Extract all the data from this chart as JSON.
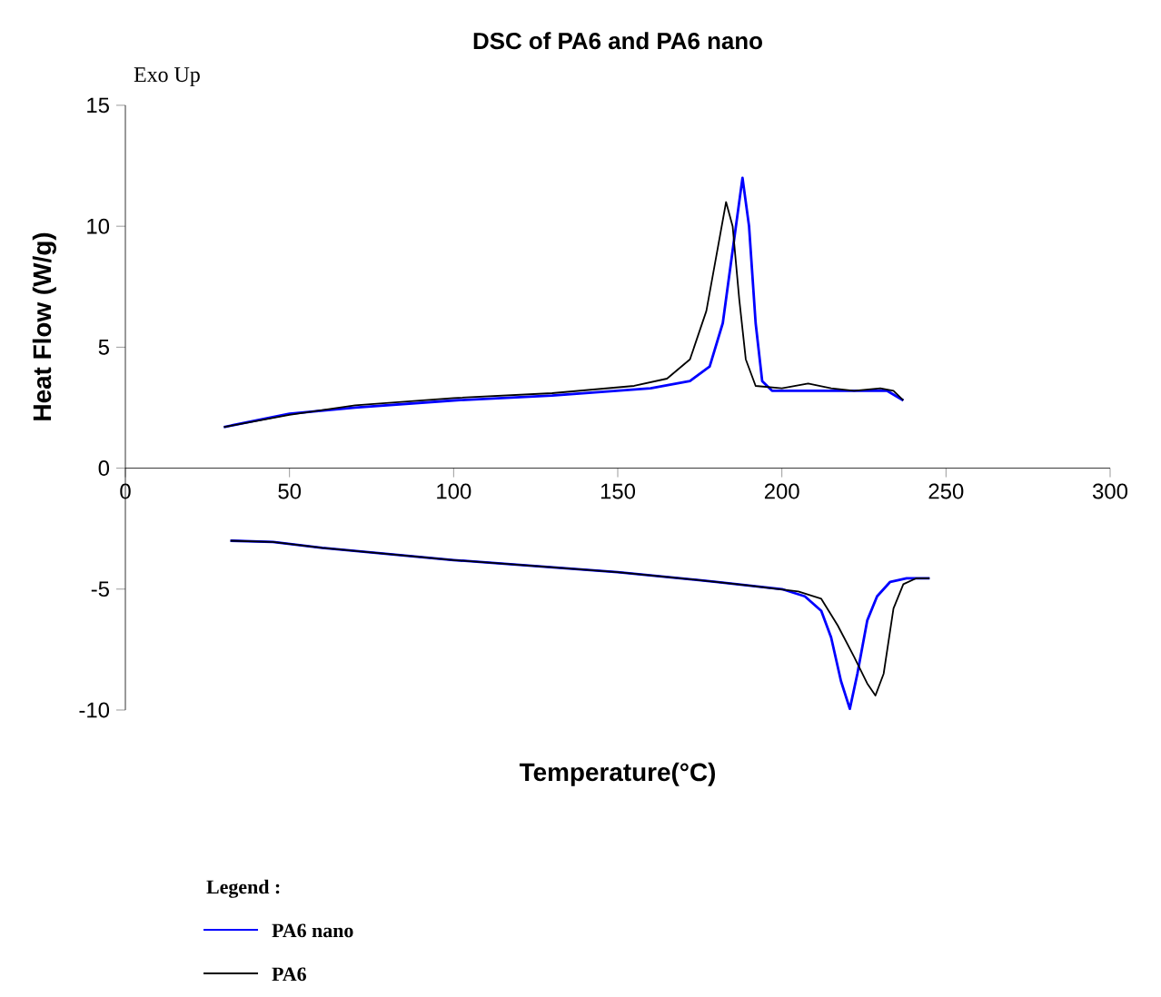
{
  "chart_data": {
    "type": "line",
    "title": "DSC of PA6 and PA6 nano",
    "xlabel": "Temperature(°C)",
    "ylabel": "Heat Flow (W/g)",
    "legend_title": "Legend :",
    "annotations": [
      "Exo Up"
    ],
    "xlim": [
      0,
      300
    ],
    "ylim": [
      -10,
      15
    ],
    "xticks": [
      0,
      50,
      100,
      150,
      200,
      250,
      300
    ],
    "yticks": [
      -10,
      -5,
      0,
      5,
      10,
      15
    ],
    "grid": false,
    "legend": "bottom",
    "marker": "none",
    "series": [
      {
        "name": "PA6 nano",
        "color": "#0000ff",
        "line_style": "solid",
        "x": [
          30,
          50,
          70,
          100,
          130,
          160,
          172,
          178,
          182,
          185,
          188,
          190,
          192,
          194,
          197,
          210,
          225,
          232,
          237,
          null,
          32,
          45,
          60,
          100,
          150,
          180,
          190,
          200,
          207,
          212,
          215,
          218,
          220.7,
          223,
          226,
          229,
          233,
          238,
          245
        ],
        "values": [
          1.7,
          2.25,
          2.5,
          2.8,
          3.0,
          3.3,
          3.6,
          4.2,
          6,
          9,
          12,
          10,
          6,
          3.6,
          3.2,
          3.2,
          3.2,
          3.2,
          2.8,
          null,
          -3.0,
          -3.05,
          -3.3,
          -3.8,
          -4.3,
          -4.7,
          -4.85,
          -5.0,
          -5.3,
          -5.9,
          -7,
          -8.8,
          -9.95,
          -8.5,
          -6.3,
          -5.3,
          -4.7,
          -4.55,
          -4.55
        ]
      },
      {
        "name": "PA6",
        "color": "#000000",
        "line_style": "solid",
        "x": [
          30,
          50,
          70,
          100,
          130,
          155,
          165,
          172,
          177,
          181,
          183,
          185,
          187,
          189,
          192,
          200,
          208,
          215,
          222,
          230,
          234,
          237,
          null,
          32,
          45,
          60,
          100,
          150,
          180,
          190,
          205,
          212,
          217,
          222,
          226,
          228.5,
          231,
          234,
          237,
          241,
          245
        ],
        "values": [
          1.7,
          2.2,
          2.6,
          2.9,
          3.1,
          3.4,
          3.7,
          4.5,
          6.5,
          9.5,
          11,
          10,
          7,
          4.5,
          3.4,
          3.3,
          3.5,
          3.3,
          3.2,
          3.3,
          3.2,
          2.8,
          null,
          -3.0,
          -3.05,
          -3.3,
          -3.8,
          -4.3,
          -4.7,
          -4.85,
          -5.1,
          -5.4,
          -6.5,
          -7.8,
          -8.9,
          -9.4,
          -8.5,
          -5.8,
          -4.8,
          -4.55,
          -4.55
        ]
      }
    ]
  }
}
